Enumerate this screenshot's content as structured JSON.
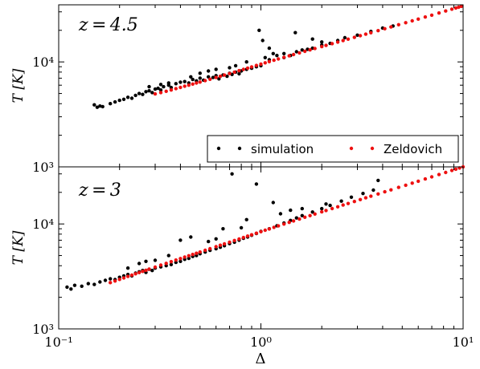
{
  "chart_data": [
    {
      "type": "scatter",
      "panel_label": "z = 4.5",
      "xlabel": "",
      "ylabel": "T [K]",
      "xscale": "log",
      "yscale": "log",
      "xlim": [
        0.1,
        10
      ],
      "ylim": [
        1000,
        35000
      ],
      "x_ticks": [
        {
          "value": 0.1,
          "label": "10⁻¹"
        },
        {
          "value": 1,
          "label": "10⁰"
        },
        {
          "value": 10,
          "label": "10¹"
        }
      ],
      "y_ticks": [
        {
          "value": 1000,
          "label": "10³"
        },
        {
          "value": 10000,
          "label": "10⁴"
        }
      ],
      "legend": {
        "placement": "lower-right",
        "entries": [
          "simulation",
          "Zeldovich"
        ]
      },
      "series": [
        {
          "name": "simulation",
          "color": "#000000",
          "x": [
            0.15,
            0.155,
            0.16,
            0.165,
            0.18,
            0.19,
            0.2,
            0.21,
            0.22,
            0.23,
            0.24,
            0.25,
            0.26,
            0.27,
            0.28,
            0.29,
            0.3,
            0.31,
            0.32,
            0.33,
            0.35,
            0.36,
            0.38,
            0.4,
            0.42,
            0.44,
            0.46,
            0.48,
            0.5,
            0.52,
            0.55,
            0.58,
            0.6,
            0.62,
            0.65,
            0.68,
            0.7,
            0.72,
            0.75,
            0.78,
            0.8,
            0.85,
            0.9,
            0.95,
            1.0,
            1.05,
            1.1,
            1.15,
            1.2,
            1.3,
            1.4,
            1.5,
            1.6,
            1.7,
            1.8,
            2.0,
            2.2,
            2.4,
            2.6,
            3.0,
            3.5,
            4.0,
            4.5,
            0.98,
            1.02,
            1.48,
            1.8,
            2.0,
            0.45,
            0.5,
            0.55,
            0.6,
            0.7,
            0.75,
            0.85,
            1.1,
            1.3,
            0.35,
            0.28,
            0.32
          ],
          "y": [
            3900,
            3700,
            3800,
            3750,
            4000,
            4150,
            4300,
            4400,
            4600,
            4500,
            4800,
            5000,
            4900,
            5200,
            5300,
            5100,
            5500,
            5600,
            5400,
            5800,
            6000,
            5700,
            6200,
            6400,
            6500,
            6300,
            6800,
            6600,
            7000,
            6700,
            7200,
            7100,
            7400,
            6900,
            7500,
            7300,
            7800,
            7600,
            8000,
            7700,
            8200,
            8500,
            8700,
            9000,
            9200,
            11000,
            10500,
            12000,
            11500,
            11000,
            11500,
            12500,
            13000,
            13200,
            13500,
            14500,
            15000,
            16000,
            17000,
            18000,
            19500,
            21000,
            22000,
            20000,
            16000,
            19000,
            16500,
            15500,
            7200,
            7800,
            8200,
            8500,
            8800,
            9200,
            10000,
            13500,
            12000,
            6300,
            5800,
            6100
          ]
        },
        {
          "name": "Zeldovich",
          "color": "#ee1111",
          "x": [
            0.3,
            0.32,
            0.34,
            0.36,
            0.38,
            0.4,
            0.42,
            0.44,
            0.46,
            0.48,
            0.5,
            0.53,
            0.56,
            0.6,
            0.63,
            0.66,
            0.7,
            0.74,
            0.78,
            0.82,
            0.86,
            0.9,
            0.95,
            1.0,
            1.05,
            1.1,
            1.16,
            1.22,
            1.3,
            1.38,
            1.45,
            1.55,
            1.65,
            1.75,
            1.85,
            2.0,
            2.1,
            2.25,
            2.4,
            2.55,
            2.7,
            2.9,
            3.1,
            3.3,
            3.5,
            3.8,
            4.1,
            4.4,
            4.8,
            5.2,
            5.6,
            6.0,
            6.5,
            7.0,
            7.6,
            8.2,
            8.8,
            9.2,
            9.5,
            9.8
          ],
          "y": [
            4950,
            5100,
            5250,
            5400,
            5560,
            5710,
            5860,
            6000,
            6150,
            6290,
            6430,
            6630,
            6840,
            7100,
            7300,
            7490,
            7750,
            8000,
            8250,
            8490,
            8730,
            8960,
            9250,
            9530,
            9800,
            10060,
            10370,
            10670,
            11060,
            11430,
            11750,
            12190,
            12610,
            13020,
            13420,
            14000,
            14370,
            14920,
            15450,
            15970,
            16470,
            17120,
            17760,
            18380,
            18980,
            19860,
            20710,
            21540,
            22610,
            23640,
            24630,
            25600,
            26770,
            27910,
            29240,
            30540,
            31800,
            32620,
            33220,
            33820
          ]
        }
      ]
    },
    {
      "type": "scatter",
      "panel_label": "z = 3",
      "xlabel": "Δ",
      "ylabel": "T [K]",
      "xscale": "log",
      "yscale": "log",
      "xlim": [
        0.1,
        10
      ],
      "ylim": [
        1000,
        35000
      ],
      "x_ticks": [
        {
          "value": 0.1,
          "label": "10⁻¹"
        },
        {
          "value": 1,
          "label": "10⁰"
        },
        {
          "value": 10,
          "label": "10¹"
        }
      ],
      "y_ticks": [
        {
          "value": 1000,
          "label": "10³"
        },
        {
          "value": 10000,
          "label": "10⁴"
        }
      ],
      "series": [
        {
          "name": "simulation",
          "color": "#000000",
          "x": [
            0.11,
            0.115,
            0.12,
            0.13,
            0.14,
            0.15,
            0.16,
            0.17,
            0.18,
            0.19,
            0.2,
            0.21,
            0.22,
            0.23,
            0.24,
            0.25,
            0.26,
            0.27,
            0.28,
            0.29,
            0.3,
            0.32,
            0.34,
            0.36,
            0.38,
            0.4,
            0.42,
            0.44,
            0.46,
            0.48,
            0.5,
            0.53,
            0.56,
            0.6,
            0.63,
            0.66,
            0.7,
            0.74,
            0.78,
            0.82,
            0.86,
            0.9,
            0.95,
            1.0,
            1.1,
            1.2,
            1.3,
            1.4,
            1.5,
            1.6,
            1.8,
            2.0,
            2.2,
            2.5,
            2.8,
            3.2,
            3.6,
            0.72,
            0.95,
            1.15,
            1.6,
            2.1,
            3.8,
            0.4,
            0.45,
            0.55,
            0.6,
            0.65,
            0.8,
            0.85,
            1.25,
            1.4,
            0.3,
            0.35,
            0.22,
            0.25,
            0.27
          ],
          "y": [
            2500,
            2400,
            2600,
            2550,
            2700,
            2650,
            2800,
            2900,
            3000,
            2950,
            3100,
            3200,
            3300,
            3200,
            3400,
            3500,
            3600,
            3450,
            3700,
            3600,
            3800,
            3900,
            4000,
            4100,
            4300,
            4400,
            4600,
            4700,
            4900,
            5000,
            5200,
            5400,
            5600,
            5800,
            6000,
            6200,
            6500,
            6700,
            7000,
            7300,
            7500,
            7800,
            8100,
            8500,
            9000,
            9600,
            10200,
            10800,
            11400,
            12000,
            13000,
            14000,
            15000,
            16500,
            18000,
            19500,
            21000,
            30000,
            24000,
            16000,
            14000,
            15500,
            26000,
            7000,
            7500,
            6800,
            7200,
            9000,
            9200,
            11000,
            12500,
            13500,
            4500,
            5000,
            3800,
            4200,
            4400
          ]
        },
        {
          "name": "Zeldovich",
          "color": "#ee1111",
          "x": [
            0.18,
            0.19,
            0.2,
            0.21,
            0.22,
            0.23,
            0.24,
            0.25,
            0.26,
            0.27,
            0.28,
            0.3,
            0.32,
            0.34,
            0.36,
            0.38,
            0.4,
            0.42,
            0.44,
            0.46,
            0.48,
            0.5,
            0.53,
            0.56,
            0.6,
            0.63,
            0.66,
            0.7,
            0.74,
            0.78,
            0.82,
            0.86,
            0.9,
            0.95,
            1.0,
            1.05,
            1.1,
            1.16,
            1.22,
            1.3,
            1.38,
            1.45,
            1.55,
            1.65,
            1.75,
            1.85,
            2.0,
            2.1,
            2.25,
            2.4,
            2.55,
            2.7,
            2.9,
            3.1,
            3.3,
            3.5,
            3.8,
            4.1,
            4.4,
            4.8,
            5.2,
            5.6,
            6.0,
            6.5,
            7.0,
            7.6,
            8.2,
            8.8,
            9.2,
            9.6,
            10.0
          ],
          "y": [
            2760,
            2860,
            2960,
            3060,
            3160,
            3250,
            3350,
            3440,
            3530,
            3620,
            3710,
            3880,
            4050,
            4210,
            4370,
            4530,
            4680,
            4830,
            4980,
            5120,
            5260,
            5400,
            5610,
            5810,
            6070,
            6270,
            6460,
            6700,
            6950,
            7190,
            7420,
            7660,
            7880,
            8170,
            8440,
            8710,
            8970,
            9280,
            9580,
            9970,
            10350,
            10680,
            11130,
            11580,
            12010,
            12430,
            13040,
            13440,
            14020,
            14580,
            15140,
            15670,
            16370,
            17060,
            17730,
            18380,
            19320,
            20240,
            21130,
            22290,
            23410,
            24500,
            25550,
            26840,
            28090,
            29550,
            30960,
            32340,
            33240,
            34120,
            35000
          ]
        }
      ]
    }
  ]
}
